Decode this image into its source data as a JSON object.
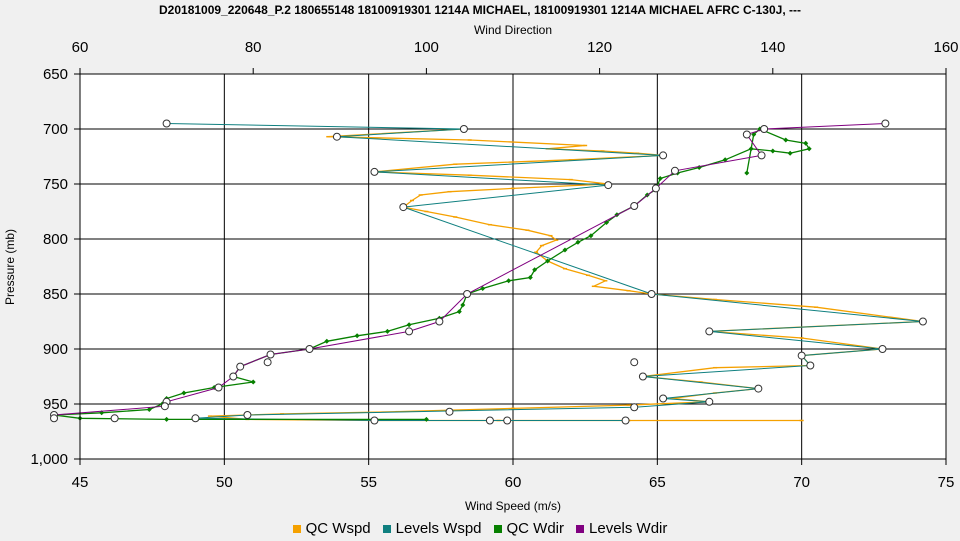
{
  "chart_data": {
    "type": "line",
    "title": "D20181009_220648_P.2 180655148 18100919301 1214A MICHAEL, 18100919301 1214A MICHAEL AFRC C-130J, ---",
    "xlabel": "Wind Speed (m/s)",
    "x2label": "Wind Direction",
    "ylabel": "Pressure (mb)",
    "xlim": [
      45,
      75
    ],
    "x2lim": [
      60,
      160
    ],
    "ylim": [
      650,
      1000
    ],
    "y_inverted": true,
    "x_ticks": [
      "45",
      "50",
      "55",
      "60",
      "65",
      "70",
      "75"
    ],
    "x2_ticks": [
      "60",
      "80",
      "100",
      "120",
      "140",
      "160"
    ],
    "y_ticks": [
      "650",
      "700",
      "750",
      "800",
      "850",
      "900",
      "950",
      "1,000"
    ],
    "grid": true,
    "colors": {
      "qc_wspd": "#f5a100",
      "levels_wspd": "#108080",
      "qc_wdir": "#078000",
      "levels_wdir": "#800080"
    },
    "legend": [
      {
        "label": "QC Wspd",
        "key": "qc_wspd"
      },
      {
        "label": "Levels Wspd",
        "key": "levels_wspd"
      },
      {
        "label": "QC Wdir",
        "key": "qc_wdir"
      },
      {
        "label": "Levels Wdir",
        "key": "levels_wdir"
      }
    ],
    "series": [
      {
        "name": "QC Wspd",
        "axis": "speed",
        "points": [
          [
            58.3,
            700
          ],
          [
            53.6,
            707
          ],
          [
            58.5,
            710
          ],
          [
            62.5,
            715
          ],
          [
            61.2,
            718
          ],
          [
            63.1,
            720
          ],
          [
            64.3,
            722
          ],
          [
            65.2,
            724
          ],
          [
            62.0,
            728
          ],
          [
            58.0,
            732
          ],
          [
            55.2,
            739
          ],
          [
            58.5,
            742
          ],
          [
            62.0,
            746
          ],
          [
            63.3,
            750
          ],
          [
            60.0,
            754
          ],
          [
            57.8,
            757
          ],
          [
            56.8,
            760
          ],
          [
            56.5,
            765
          ],
          [
            56.2,
            771
          ],
          [
            57.0,
            775
          ],
          [
            58.0,
            780
          ],
          [
            59.2,
            787
          ],
          [
            60.5,
            792
          ],
          [
            61.3,
            797
          ],
          [
            61.5,
            801
          ],
          [
            61.0,
            806
          ],
          [
            60.8,
            812
          ],
          [
            61.2,
            820
          ],
          [
            61.8,
            827
          ],
          [
            62.6,
            833
          ],
          [
            63.2,
            838
          ],
          [
            62.8,
            843
          ],
          [
            64.0,
            847
          ],
          [
            64.8,
            850
          ],
          [
            67.0,
            855
          ],
          [
            70.5,
            862
          ],
          [
            74.2,
            875
          ],
          [
            66.8,
            884
          ],
          [
            70.0,
            890
          ],
          [
            72.8,
            900
          ],
          [
            70.0,
            906
          ],
          [
            70.3,
            915
          ],
          [
            67.0,
            917
          ],
          [
            64.5,
            925
          ],
          [
            66.5,
            930
          ],
          [
            68.5,
            936
          ],
          [
            67.0,
            940
          ],
          [
            65.5,
            945
          ],
          [
            66.8,
            948
          ],
          [
            64.0,
            951
          ],
          [
            60.0,
            954
          ],
          [
            56.0,
            957
          ],
          [
            52.0,
            959
          ],
          [
            49.5,
            961
          ],
          [
            50.8,
            964
          ],
          [
            55.2,
            965
          ],
          [
            59.5,
            965
          ],
          [
            64.0,
            965
          ],
          [
            70.0,
            965
          ]
        ]
      },
      {
        "name": "Levels Wspd",
        "axis": "speed",
        "points": [
          [
            48.0,
            695
          ],
          [
            58.3,
            700
          ],
          [
            53.9,
            707
          ],
          [
            65.2,
            724
          ],
          [
            55.2,
            739
          ],
          [
            63.3,
            751
          ],
          [
            56.2,
            771
          ],
          [
            64.8,
            850
          ],
          [
            74.2,
            875
          ],
          [
            66.8,
            884
          ],
          [
            72.8,
            900
          ],
          [
            70.0,
            906
          ],
          [
            70.3,
            915
          ],
          [
            64.5,
            925
          ],
          [
            68.5,
            936
          ],
          [
            65.2,
            945
          ],
          [
            66.8,
            948
          ],
          [
            64.2,
            953
          ],
          [
            50.8,
            960
          ],
          [
            49.0,
            963
          ],
          [
            55.2,
            965
          ],
          [
            59.8,
            965
          ],
          [
            63.9,
            965
          ]
        ]
      },
      {
        "name": "QC Wdir",
        "axis": "direction",
        "points": [
          [
            137.0,
            740
          ],
          [
            137.8,
            705
          ],
          [
            138.5,
            700
          ],
          [
            141.5,
            710
          ],
          [
            143.8,
            713
          ],
          [
            144.2,
            718
          ],
          [
            142.0,
            722
          ],
          [
            140.0,
            720
          ],
          [
            137.5,
            718
          ],
          [
            134.5,
            728
          ],
          [
            131.5,
            735
          ],
          [
            129.0,
            740
          ],
          [
            127.0,
            745
          ],
          [
            126.5,
            755
          ],
          [
            125.5,
            760
          ],
          [
            124.0,
            770
          ],
          [
            122.0,
            778
          ],
          [
            120.8,
            785
          ],
          [
            119.0,
            797
          ],
          [
            117.5,
            803
          ],
          [
            116.0,
            810
          ],
          [
            114.0,
            820
          ],
          [
            112.5,
            828
          ],
          [
            112.0,
            835
          ],
          [
            109.5,
            838
          ],
          [
            106.5,
            845
          ],
          [
            104.7,
            850
          ],
          [
            104.2,
            860
          ],
          [
            103.8,
            866
          ],
          [
            101.5,
            872
          ],
          [
            98.0,
            878
          ],
          [
            95.5,
            884
          ],
          [
            92.0,
            888
          ],
          [
            88.5,
            893
          ],
          [
            86.5,
            900
          ],
          [
            82.0,
            905
          ],
          [
            78.5,
            916
          ],
          [
            77.7,
            925
          ],
          [
            80.0,
            930
          ],
          [
            75.5,
            935
          ],
          [
            72.0,
            940
          ],
          [
            70.0,
            945
          ],
          [
            69.5,
            950
          ],
          [
            68.0,
            955
          ],
          [
            62.5,
            958
          ],
          [
            57.0,
            960
          ],
          [
            60.0,
            963
          ],
          [
            70.0,
            964
          ],
          [
            100.0,
            964
          ]
        ]
      },
      {
        "name": "Levels Wdir",
        "axis": "direction",
        "points": [
          [
            153.0,
            695
          ],
          [
            139.0,
            700
          ],
          [
            137.0,
            705
          ],
          [
            138.7,
            724
          ],
          [
            128.7,
            738
          ],
          [
            126.5,
            754
          ],
          [
            124.0,
            770
          ],
          [
            104.7,
            850
          ],
          [
            101.5,
            875
          ],
          [
            98.0,
            884
          ],
          [
            86.5,
            900
          ],
          [
            82.0,
            905
          ],
          [
            78.5,
            916
          ],
          [
            77.7,
            925
          ],
          [
            76.0,
            935
          ],
          [
            70.0,
            948
          ],
          [
            69.8,
            952
          ],
          [
            57.0,
            960
          ],
          [
            57.0,
            963
          ]
        ]
      }
    ],
    "markers": {
      "speed": [
        [
          48.0,
          695
        ],
        [
          58.3,
          700
        ],
        [
          53.9,
          707
        ],
        [
          65.2,
          724
        ],
        [
          55.2,
          739
        ],
        [
          63.3,
          751
        ],
        [
          56.2,
          771
        ],
        [
          64.8,
          850
        ],
        [
          74.2,
          875
        ],
        [
          66.8,
          884
        ],
        [
          72.8,
          900
        ],
        [
          70.0,
          906
        ],
        [
          70.3,
          915
        ],
        [
          64.5,
          925
        ],
        [
          68.5,
          936
        ],
        [
          65.2,
          945
        ],
        [
          66.8,
          948
        ],
        [
          64.2,
          953
        ],
        [
          50.8,
          960
        ],
        [
          49.0,
          963
        ],
        [
          55.2,
          965
        ],
        [
          59.8,
          965
        ],
        [
          63.9,
          965
        ],
        [
          59.2,
          965
        ],
        [
          57.8,
          957
        ],
        [
          51.5,
          912
        ],
        [
          64.2,
          912
        ]
      ],
      "direction": [
        [
          153.0,
          695
        ],
        [
          139.0,
          700
        ],
        [
          137.0,
          705
        ],
        [
          138.7,
          724
        ],
        [
          128.7,
          738
        ],
        [
          126.5,
          754
        ],
        [
          124.0,
          770
        ],
        [
          104.7,
          850
        ],
        [
          101.5,
          875
        ],
        [
          98.0,
          884
        ],
        [
          86.5,
          900
        ],
        [
          82.0,
          905
        ],
        [
          78.5,
          916
        ],
        [
          77.7,
          925
        ],
        [
          76.0,
          935
        ],
        [
          70.0,
          948
        ],
        [
          69.8,
          952
        ],
        [
          57.0,
          960
        ],
        [
          57.0,
          963
        ],
        [
          64.0,
          963
        ]
      ]
    }
  }
}
